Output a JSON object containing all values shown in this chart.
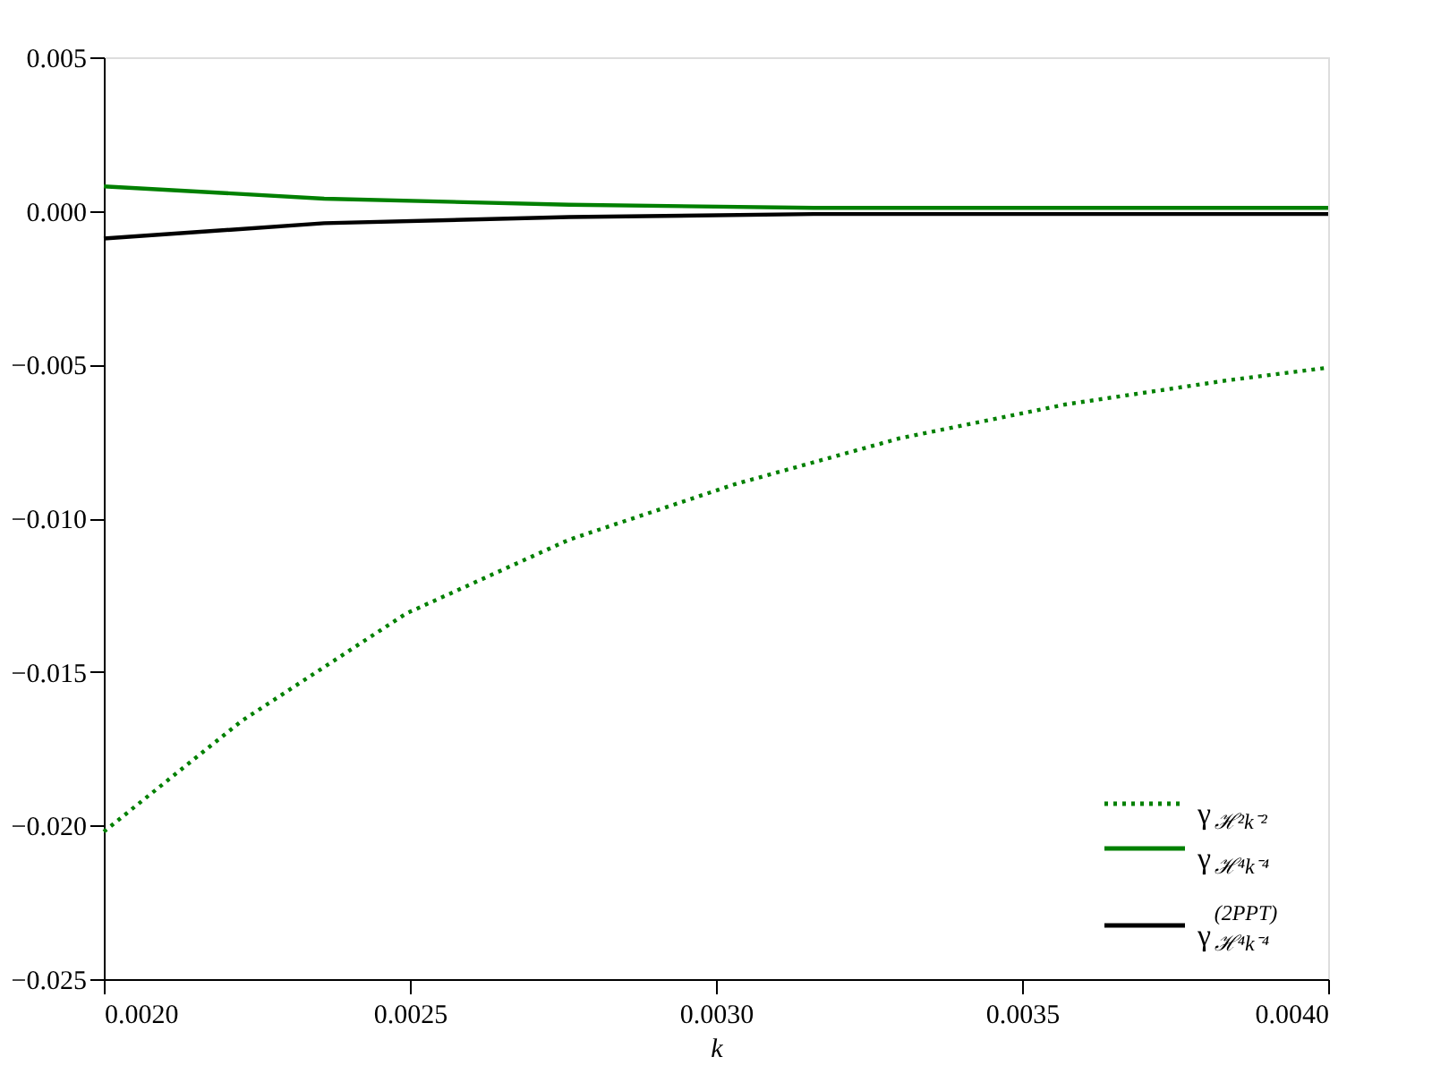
{
  "chart_data": {
    "type": "line",
    "xlabel": "k",
    "x": [
      0.002,
      0.002225,
      0.00236,
      0.002494,
      0.00276,
      0.00303,
      0.00316,
      0.0033,
      0.00357,
      0.00384,
      0.004
    ],
    "series": [
      {
        "name": "γ$_{ℋ²k⁻²}$",
        "color": "#008000",
        "line_style": "dotted",
        "values": [
          -0.0202,
          -0.0166,
          null,
          -0.0131,
          -0.0107,
          -0.0089,
          null,
          -0.0074,
          -0.0063,
          -0.0055,
          -0.0051
        ]
      },
      {
        "name": "γ$_{ℋ⁴k⁻⁴}$",
        "color": "#008000",
        "line_style": "solid",
        "values": [
          0.0008,
          null,
          0.0004,
          null,
          0.0002,
          null,
          0.0001,
          null,
          0.0001,
          null,
          0.0001
        ]
      },
      {
        "name": "γ$^{(2PPT)}$$_{ℋ⁴k⁻⁴}$",
        "color": "#000000",
        "line_style": "solid",
        "values": [
          -0.0009,
          null,
          -0.0004,
          null,
          -0.0002,
          null,
          -0.0001,
          null,
          -0.0001,
          null,
          -0.0001
        ]
      }
    ],
    "xlim": [
      0.002,
      0.004
    ],
    "xticks": [
      {
        "value": 0.002,
        "label": "0.0020"
      },
      {
        "value": 0.0025,
        "label": "0.0025"
      },
      {
        "value": 0.003,
        "label": "0.0030"
      },
      {
        "value": 0.0035,
        "label": "0.0035"
      },
      {
        "value": 0.004,
        "label": "0.0040"
      }
    ],
    "ylim": [
      -0.025,
      0.005
    ],
    "yticks": [
      {
        "value": -0.025,
        "label": "−0.025"
      },
      {
        "value": -0.02,
        "label": "−0.020"
      },
      {
        "value": -0.015,
        "label": "−0.015"
      },
      {
        "value": -0.01,
        "label": "−0.010"
      },
      {
        "value": -0.005,
        "label": "−0.005"
      },
      {
        "value": 0,
        "label": "0.000"
      },
      {
        "value": 0.005,
        "label": "0.005"
      }
    ],
    "grid": false,
    "legend": "bottom right",
    "marker": "none"
  }
}
